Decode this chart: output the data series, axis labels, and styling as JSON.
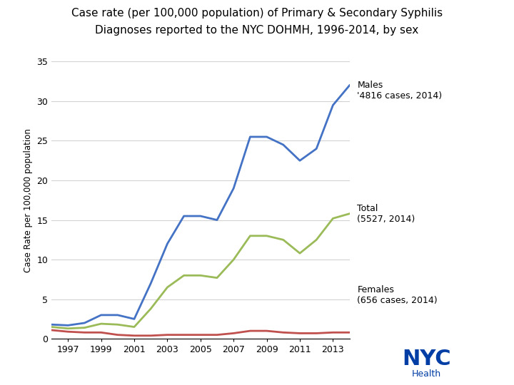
{
  "title_line1": "Case rate (per 100,000 population) of Primary & Secondary Syphilis",
  "title_line2": "Diagnoses reported to the NYC DOHMH, 1996-2014, by sex",
  "ylabel": "Case Rate per 100,000 population",
  "years": [
    1996,
    1997,
    1998,
    1999,
    2000,
    2001,
    2002,
    2003,
    2004,
    2005,
    2006,
    2007,
    2008,
    2009,
    2010,
    2011,
    2012,
    2013,
    2014
  ],
  "males": [
    1.8,
    1.7,
    2.0,
    3.0,
    3.0,
    2.5,
    7.0,
    12.0,
    15.5,
    15.5,
    15.0,
    19.0,
    25.5,
    25.5,
    24.5,
    22.5,
    24.0,
    29.5,
    32.0
  ],
  "females": [
    1.1,
    0.9,
    0.8,
    0.8,
    0.5,
    0.4,
    0.4,
    0.5,
    0.5,
    0.5,
    0.5,
    0.7,
    1.0,
    1.0,
    0.8,
    0.7,
    0.7,
    0.8,
    0.8
  ],
  "total": [
    1.5,
    1.3,
    1.4,
    1.9,
    1.8,
    1.5,
    3.8,
    6.5,
    8.0,
    8.0,
    7.7,
    10.0,
    13.0,
    13.0,
    12.5,
    10.8,
    12.5,
    15.2,
    15.8
  ],
  "males_color": "#4472C4",
  "females_color": "#C0504D",
  "total_color": "#9BBB59",
  "background_color": "#FFFFFF",
  "grid_color": "#D3D3D3",
  "ylim": [
    0,
    35
  ],
  "yticks": [
    0,
    5,
    10,
    15,
    20,
    25,
    30,
    35
  ],
  "xticks": [
    1997,
    1999,
    2001,
    2003,
    2005,
    2007,
    2009,
    2011,
    2013
  ],
  "males_label": "Males\n'4816 cases, 2014)",
  "females_label": "Females\n(656 cases, 2014)",
  "total_label": "Total\n(5527, 2014)",
  "line_width": 2.0,
  "nyc_blue": "#003DA5",
  "nyc_orange": "#E35205"
}
